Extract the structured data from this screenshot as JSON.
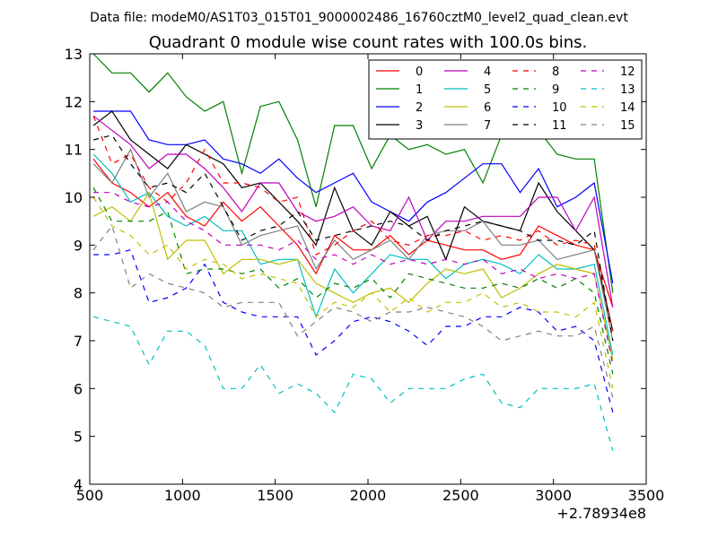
{
  "chart_data": {
    "type": "line",
    "supertitle": "Data file: modeM0/AS1T03_015T01_9000002486_16760cztM0_level2_quad_clean.evt",
    "title": "Quadrant 0 module wise count rates with 100.0s bins.",
    "xlabel": "",
    "ylabel": "",
    "x_offset_label": "+2.78934e8",
    "xlim": [
      500,
      3500
    ],
    "ylim": [
      4,
      13
    ],
    "xticks": [
      500,
      1000,
      1500,
      2000,
      2500,
      3000,
      3500
    ],
    "yticks": [
      4,
      5,
      6,
      7,
      8,
      9,
      10,
      11,
      12,
      13
    ],
    "legend_position": "top-right",
    "x": [
      520,
      620,
      720,
      820,
      920,
      1020,
      1120,
      1220,
      1320,
      1420,
      1520,
      1620,
      1720,
      1820,
      1920,
      2020,
      2120,
      2220,
      2320,
      2420,
      2520,
      2620,
      2720,
      2820,
      2920,
      3020,
      3120,
      3220,
      3320
    ],
    "series": [
      {
        "name": "0",
        "color": "#ff0000",
        "style": "solid",
        "values": [
          10.8,
          10.3,
          10.1,
          9.8,
          10.1,
          9.6,
          9.4,
          9.9,
          9.5,
          9.8,
          9.4,
          9.0,
          8.4,
          9.2,
          8.9,
          8.9,
          9.2,
          8.8,
          9.1,
          9.0,
          8.9,
          8.9,
          8.7,
          8.8,
          9.4,
          9.2,
          9.0,
          8.9,
          7.7
        ]
      },
      {
        "name": "1",
        "color": "#008000",
        "style": "solid",
        "values": [
          13.0,
          12.6,
          12.6,
          12.2,
          12.6,
          12.1,
          11.8,
          12.0,
          10.5,
          11.9,
          12.0,
          11.2,
          9.8,
          11.5,
          11.5,
          10.6,
          11.3,
          11.0,
          11.1,
          10.9,
          11.0,
          10.3,
          11.3,
          11.4,
          11.4,
          10.9,
          10.8,
          10.8,
          8.0
        ]
      },
      {
        "name": "2",
        "color": "#0000ff",
        "style": "solid",
        "values": [
          11.8,
          11.8,
          11.8,
          11.2,
          11.1,
          11.1,
          11.2,
          10.8,
          10.7,
          10.5,
          10.8,
          10.4,
          10.1,
          10.3,
          10.5,
          9.9,
          9.7,
          9.5,
          9.9,
          10.1,
          10.4,
          10.7,
          10.7,
          10.1,
          10.6,
          9.8,
          10.0,
          10.3,
          8.2
        ]
      },
      {
        "name": "3",
        "color": "#000000",
        "style": "solid",
        "values": [
          11.5,
          11.8,
          11.2,
          10.9,
          10.6,
          11.1,
          10.9,
          10.7,
          10.2,
          10.3,
          9.9,
          9.5,
          9.0,
          10.2,
          9.3,
          9.0,
          9.7,
          9.4,
          9.6,
          8.7,
          9.8,
          9.5,
          9.4,
          9.3,
          10.3,
          9.7,
          9.3,
          8.9,
          7.2
        ]
      },
      {
        "name": "4",
        "color": "#bf00bf",
        "style": "solid",
        "values": [
          11.7,
          11.4,
          11.1,
          10.6,
          10.9,
          10.9,
          10.6,
          10.2,
          9.7,
          10.3,
          10.3,
          9.7,
          9.5,
          9.6,
          9.8,
          9.4,
          9.3,
          10.0,
          9.1,
          9.5,
          9.5,
          9.6,
          9.6,
          9.6,
          10.0,
          10.0,
          9.3,
          10.0,
          7.7
        ]
      },
      {
        "name": "5",
        "color": "#00bfbf",
        "style": "solid",
        "values": [
          10.9,
          10.5,
          9.9,
          10.1,
          9.6,
          9.4,
          9.6,
          9.3,
          9.3,
          8.6,
          8.7,
          8.7,
          7.5,
          8.5,
          8.0,
          8.4,
          8.8,
          8.7,
          8.7,
          8.3,
          8.6,
          8.7,
          8.6,
          8.4,
          8.8,
          8.5,
          8.5,
          8.6,
          6.7
        ]
      },
      {
        "name": "6",
        "color": "#bfbf00",
        "style": "solid",
        "values": [
          9.6,
          9.8,
          9.5,
          10.1,
          8.7,
          9.1,
          9.1,
          8.4,
          8.7,
          8.7,
          8.6,
          8.7,
          8.2,
          8.0,
          7.8,
          8.0,
          8.1,
          7.8,
          8.2,
          8.5,
          8.4,
          8.5,
          7.9,
          8.1,
          8.4,
          8.6,
          8.5,
          8.4,
          6.6
        ]
      },
      {
        "name": "7",
        "color": "#808080",
        "style": "solid",
        "values": [
          10.7,
          10.3,
          11.0,
          10.0,
          10.5,
          9.7,
          9.9,
          9.8,
          9.0,
          9.2,
          9.3,
          9.4,
          8.5,
          9.1,
          8.7,
          8.9,
          9.1,
          8.7,
          9.2,
          9.3,
          9.3,
          9.5,
          9.0,
          9.0,
          9.1,
          8.7,
          8.8,
          8.9,
          7.0
        ]
      },
      {
        "name": "8",
        "color": "#ff0000",
        "style": "dashed",
        "values": [
          11.7,
          10.7,
          10.9,
          10.2,
          9.9,
          10.3,
          11.0,
          10.3,
          10.3,
          10.2,
          9.9,
          10.0,
          8.8,
          9.0,
          9.3,
          9.5,
          9.1,
          9.0,
          9.2,
          9.2,
          9.3,
          9.1,
          9.2,
          9.1,
          9.3,
          9.0,
          9.1,
          9.0,
          7.2
        ]
      },
      {
        "name": "9",
        "color": "#008000",
        "style": "dashed",
        "values": [
          10.2,
          9.5,
          9.5,
          9.5,
          9.7,
          8.4,
          8.5,
          8.5,
          8.4,
          8.5,
          8.1,
          8.3,
          7.9,
          8.2,
          8.1,
          8.3,
          7.9,
          8.4,
          8.3,
          8.2,
          8.1,
          8.1,
          8.2,
          8.1,
          8.3,
          8.1,
          8.3,
          8.0,
          6.3
        ]
      },
      {
        "name": "10",
        "color": "#0000ff",
        "style": "dashed",
        "values": [
          8.8,
          8.8,
          8.9,
          7.8,
          7.9,
          8.1,
          8.6,
          7.8,
          7.6,
          7.5,
          7.5,
          7.5,
          6.7,
          7.0,
          7.4,
          7.5,
          7.4,
          7.2,
          6.9,
          7.3,
          7.3,
          7.5,
          7.5,
          7.7,
          7.6,
          7.2,
          7.3,
          7.0,
          5.5
        ]
      },
      {
        "name": "11",
        "color": "#000000",
        "style": "dashed",
        "values": [
          11.2,
          11.3,
          10.7,
          10.2,
          10.3,
          10.1,
          10.5,
          9.8,
          9.1,
          9.3,
          9.4,
          9.7,
          9.1,
          9.2,
          9.3,
          9.4,
          9.5,
          9.4,
          9.1,
          9.3,
          9.4,
          9.5,
          9.4,
          9.3,
          9.1,
          9.1,
          9.0,
          9.3,
          7.0
        ]
      },
      {
        "name": "12",
        "color": "#bf00bf",
        "style": "dashed",
        "values": [
          10.1,
          10.1,
          9.9,
          9.8,
          9.9,
          9.5,
          9.3,
          9.0,
          9.0,
          9.0,
          8.9,
          9.1,
          8.7,
          8.8,
          8.6,
          8.8,
          8.6,
          8.7,
          8.6,
          8.7,
          8.6,
          8.7,
          8.4,
          8.5,
          8.3,
          8.4,
          8.3,
          8.4,
          6.5
        ]
      },
      {
        "name": "13",
        "color": "#00bfbf",
        "style": "dashed",
        "values": [
          7.5,
          7.4,
          7.3,
          6.5,
          7.2,
          7.2,
          6.9,
          6.0,
          6.0,
          6.5,
          5.9,
          6.1,
          5.9,
          5.5,
          6.3,
          6.2,
          5.7,
          6.0,
          6.0,
          6.0,
          6.2,
          6.3,
          5.7,
          5.6,
          6.0,
          6.0,
          6.0,
          6.1,
          4.7
        ]
      },
      {
        "name": "14",
        "color": "#bfbf00",
        "style": "dashed",
        "values": [
          10.0,
          9.4,
          9.2,
          8.8,
          9.0,
          8.5,
          8.7,
          8.6,
          8.3,
          8.4,
          8.3,
          8.2,
          7.5,
          7.8,
          7.7,
          8.0,
          7.6,
          7.9,
          7.6,
          7.8,
          7.8,
          8.0,
          7.7,
          7.8,
          7.6,
          7.6,
          7.5,
          7.8,
          6.0
        ]
      },
      {
        "name": "15",
        "color": "#808080",
        "style": "dashed",
        "values": [
          8.9,
          9.4,
          8.1,
          8.4,
          8.2,
          8.1,
          8.0,
          7.7,
          7.8,
          7.8,
          7.8,
          7.1,
          7.4,
          7.7,
          7.6,
          7.4,
          7.6,
          7.6,
          7.7,
          7.6,
          7.5,
          7.3,
          7.0,
          7.1,
          7.2,
          7.1,
          7.1,
          7.3,
          5.8
        ]
      }
    ]
  }
}
